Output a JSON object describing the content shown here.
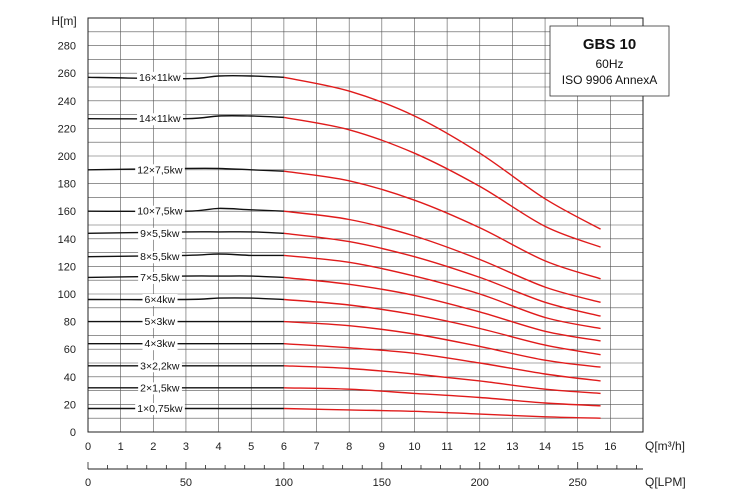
{
  "chart_data": {
    "type": "line",
    "title": "GBS 10",
    "legend": {
      "title": "GBS 10",
      "lines": [
        "60Hz",
        "ISO 9906 AnnexA"
      ],
      "placement": "top-right"
    },
    "ylabel": "H[m]",
    "xlabel": "Q[m³/h]",
    "x2label": "Q[LPM]",
    "xlim": [
      0,
      17
    ],
    "ylim": [
      0,
      300
    ],
    "yticks": [
      0,
      20,
      40,
      60,
      80,
      100,
      120,
      140,
      160,
      180,
      200,
      220,
      240,
      260,
      280
    ],
    "xticks": [
      0,
      1,
      2,
      3,
      4,
      5,
      6,
      7,
      8,
      9,
      10,
      11,
      12,
      13,
      14,
      15,
      16
    ],
    "x2ticks": [
      0,
      50,
      100,
      150,
      200,
      250
    ],
    "x2_per_x": 16.667,
    "grid": true,
    "colors": {
      "outside_range": "#111111",
      "operating_range": "#e01b1b",
      "grid": "#555555"
    },
    "operating_range_start": 6,
    "series": [
      {
        "name": "16×11kw",
        "x": [
          0,
          3,
          4,
          5,
          6,
          8,
          10,
          12,
          14,
          15.7
        ],
        "y": [
          257,
          256,
          258,
          258,
          257,
          247,
          229,
          202,
          169,
          147
        ]
      },
      {
        "name": "14×11kw",
        "x": [
          0,
          3,
          4,
          5,
          6,
          8,
          10,
          12,
          14,
          15.7
        ],
        "y": [
          227,
          227,
          229,
          229,
          228,
          219,
          202,
          178,
          149,
          134
        ]
      },
      {
        "name": "12×7,5kw",
        "x": [
          0,
          3,
          4,
          5,
          6,
          8,
          10,
          12,
          14,
          15.7
        ],
        "y": [
          190,
          191,
          191,
          190,
          189,
          182,
          168,
          148,
          124,
          111
        ]
      },
      {
        "name": "10×7,5kw",
        "x": [
          0,
          3,
          4,
          5,
          6,
          8,
          10,
          12,
          14,
          15.7
        ],
        "y": [
          160,
          160,
          162,
          161,
          160,
          154,
          142,
          125,
          105,
          94
        ]
      },
      {
        "name": "9×5,5kw",
        "x": [
          0,
          3,
          4,
          5,
          6,
          8,
          10,
          12,
          14,
          15.7
        ],
        "y": [
          144,
          145,
          145,
          145,
          144,
          138,
          127,
          112,
          94,
          84
        ]
      },
      {
        "name": "8×5,5kw",
        "x": [
          0,
          3,
          4,
          5,
          6,
          8,
          10,
          12,
          14,
          15.7
        ],
        "y": [
          127,
          128,
          129,
          128,
          128,
          123,
          113,
          100,
          83,
          75
        ]
      },
      {
        "name": "7×5,5kw",
        "x": [
          0,
          3,
          4,
          5,
          6,
          8,
          10,
          12,
          14,
          15.7
        ],
        "y": [
          112,
          113,
          113,
          113,
          112,
          107,
          99,
          87,
          73,
          66
        ]
      },
      {
        "name": "6×4kw",
        "x": [
          0,
          3,
          4,
          5,
          6,
          8,
          10,
          12,
          14,
          15.7
        ],
        "y": [
          96,
          96,
          97,
          97,
          96,
          92,
          85,
          75,
          63,
          56
        ]
      },
      {
        "name": "5×3kw",
        "x": [
          0,
          3,
          4,
          5,
          6,
          8,
          10,
          12,
          14,
          15.7
        ],
        "y": [
          80,
          80,
          80,
          80,
          80,
          77,
          71,
          62,
          52,
          47
        ]
      },
      {
        "name": "4×3kw",
        "x": [
          0,
          3,
          4,
          5,
          6,
          8,
          10,
          12,
          14,
          15.7
        ],
        "y": [
          64,
          64,
          64,
          64,
          64,
          61,
          57,
          50,
          42,
          37
        ]
      },
      {
        "name": "3×2,2kw",
        "x": [
          0,
          3,
          4,
          5,
          6,
          8,
          10,
          12,
          14,
          15.7
        ],
        "y": [
          48,
          48,
          48,
          48,
          48,
          46,
          42,
          37,
          31,
          28
        ]
      },
      {
        "name": "2×1,5kw",
        "x": [
          0,
          3,
          4,
          5,
          6,
          8,
          10,
          12,
          14,
          15.7
        ],
        "y": [
          32,
          32,
          32,
          32,
          32,
          31,
          28,
          25,
          21,
          19
        ]
      },
      {
        "name": "1×0,75kw",
        "x": [
          0,
          3,
          4,
          5,
          6,
          8,
          10,
          12,
          14,
          15.7
        ],
        "y": [
          17,
          17,
          17,
          17,
          17,
          16,
          15,
          13,
          11,
          10
        ]
      }
    ]
  }
}
